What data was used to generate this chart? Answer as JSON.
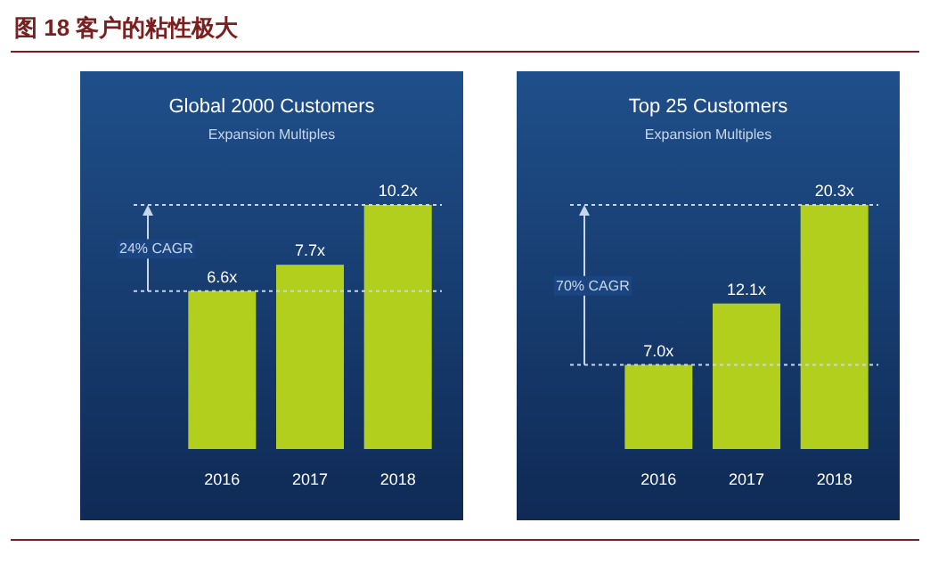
{
  "chart_data": [
    {
      "type": "bar",
      "title": "Global 2000 Customers",
      "subtitle": "Expansion Multiples",
      "annotations": [
        "图 18 客户的粘性极大",
        "24% CAGR"
      ],
      "categories": [
        "2016",
        "2017",
        "2018"
      ],
      "values": [
        6.6,
        7.7,
        10.2
      ],
      "value_labels": [
        "6.6x",
        "7.7x",
        "10.2x"
      ],
      "color": "#b3cf1e",
      "ref_lines": [
        {
          "axis": "y",
          "value": 6.6,
          "line_style": "dotted"
        },
        {
          "axis": "y",
          "value": 10.2,
          "line_style": "dotted"
        }
      ]
    },
    {
      "type": "bar",
      "title": "Top 25 Customers",
      "subtitle": "Expansion Multiples",
      "annotations": [
        "70% CAGR"
      ],
      "categories": [
        "2016",
        "2017",
        "2018"
      ],
      "values": [
        7.0,
        12.1,
        20.3
      ],
      "value_labels": [
        "7.0x",
        "12.1x",
        "20.3x"
      ],
      "color": "#b3cf1e",
      "ref_lines": [
        {
          "axis": "y",
          "value": 7.0,
          "line_style": "dotted"
        },
        {
          "axis": "y",
          "value": 20.3,
          "line_style": "dotted"
        }
      ]
    }
  ]
}
